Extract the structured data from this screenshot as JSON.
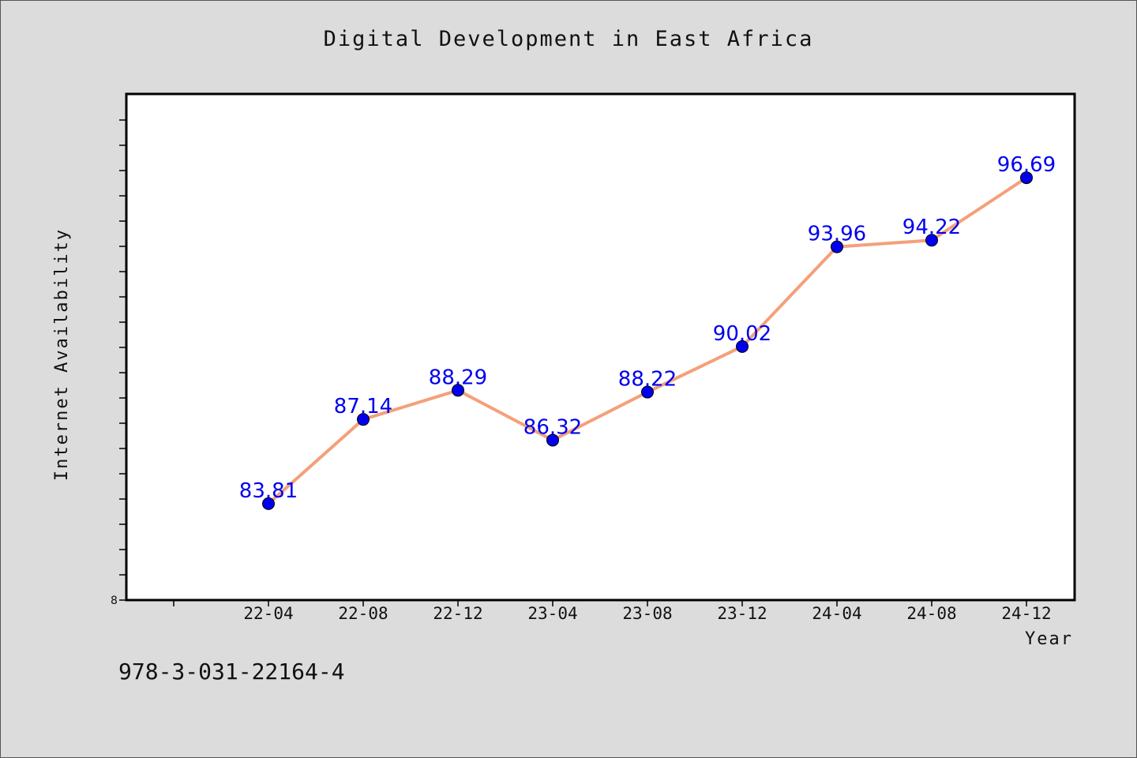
{
  "chart_data": {
    "type": "line",
    "title": "Digital Development in East Africa",
    "xlabel": "Year",
    "ylabel": "Internet Availability",
    "categories": [
      "22-04",
      "22-08",
      "22-12",
      "23-04",
      "23-08",
      "23-12",
      "24-04",
      "24-08",
      "24-12"
    ],
    "series": [
      {
        "values": [
          83.81,
          87.14,
          88.29,
          86.32,
          88.22,
          90.02,
          93.96,
          94.22,
          96.69
        ]
      }
    ],
    "data_labels": [
      "83.81",
      "87.14",
      "88.29",
      "86.32",
      "88.22",
      "90.02",
      "93.96",
      "94.22",
      "96.69"
    ],
    "ytick_labels": [
      "8"
    ],
    "ylim": [
      80,
      100
    ],
    "grid": false,
    "line_color": "#f4a07a",
    "marker_color": "#0000ee",
    "label_color": "#0000ee"
  },
  "footer": {
    "isbn": "978-3-031-22164-4"
  }
}
